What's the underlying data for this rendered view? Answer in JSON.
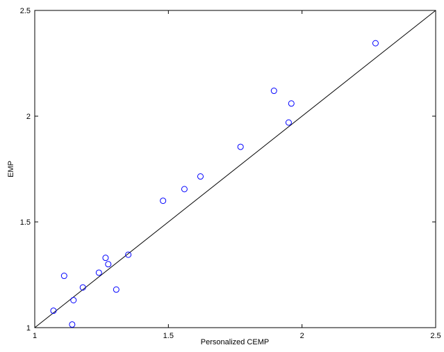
{
  "chart_data": {
    "type": "scatter",
    "title": "",
    "xlabel": "Personalized CEMP",
    "ylabel": "EMP",
    "xlim": [
      1,
      2.5
    ],
    "ylim": [
      1,
      2.5
    ],
    "xticks": [
      1,
      1.5,
      2,
      2.5
    ],
    "yticks": [
      1,
      1.5,
      2,
      2.5
    ],
    "xtick_labels": [
      "1",
      "1.5",
      "2",
      "2.5"
    ],
    "ytick_labels": [
      "1",
      "1.5",
      "2",
      "2.5"
    ],
    "grid": false,
    "marker": "open-circle",
    "marker_color": "#0000ff",
    "reference_line": {
      "from": [
        1,
        1
      ],
      "to": [
        2.5,
        2.5
      ],
      "color": "#000000"
    },
    "points": [
      {
        "x": 1.07,
        "y": 1.08
      },
      {
        "x": 1.11,
        "y": 1.245
      },
      {
        "x": 1.14,
        "y": 1.015
      },
      {
        "x": 1.145,
        "y": 1.13
      },
      {
        "x": 1.18,
        "y": 1.19
      },
      {
        "x": 1.24,
        "y": 1.26
      },
      {
        "x": 1.265,
        "y": 1.33
      },
      {
        "x": 1.275,
        "y": 1.3
      },
      {
        "x": 1.305,
        "y": 1.18
      },
      {
        "x": 1.35,
        "y": 1.345
      },
      {
        "x": 1.48,
        "y": 1.6
      },
      {
        "x": 1.56,
        "y": 1.655
      },
      {
        "x": 1.62,
        "y": 1.715
      },
      {
        "x": 1.77,
        "y": 1.855
      },
      {
        "x": 1.895,
        "y": 2.12
      },
      {
        "x": 1.95,
        "y": 1.97
      },
      {
        "x": 1.96,
        "y": 2.06
      },
      {
        "x": 2.275,
        "y": 2.345
      }
    ]
  }
}
